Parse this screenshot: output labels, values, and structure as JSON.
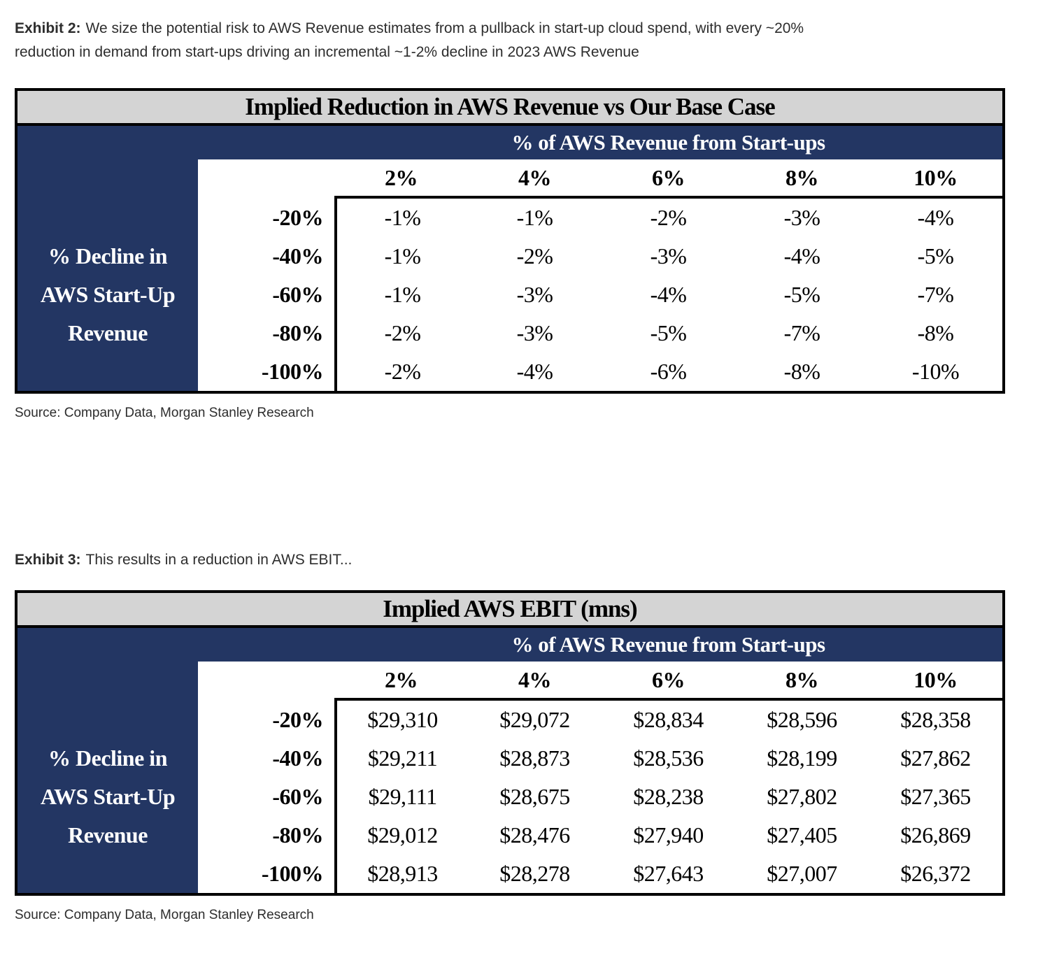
{
  "captions": {
    "exhibit2_label": "Exhibit 2:",
    "exhibit2_lines": [
      "We size the potential risk to AWS Revenue estimates from a pullback in start-up cloud spend, with every ~20%",
      "reduction in demand from start-ups driving an incremental ~1-2% decline in 2023 AWS Revenue"
    ],
    "exhibit3_label": "Exhibit 3:",
    "exhibit3_text": "This results in a reduction in AWS EBIT...",
    "source": "Source: Company Data, Morgan Stanley Research"
  },
  "colors": {
    "navy": "#233663",
    "title_bar_gray": "#D4D4D4",
    "border_black": "#000000",
    "caption_text": "#2D2D2D"
  },
  "chart_data": [
    {
      "type": "table",
      "title": "Implied Reduction in AWS Revenue vs Our Base Case",
      "column_group_label": "% of AWS Revenue from Start-ups",
      "row_group_label_lines": [
        "% Decline in",
        "AWS Start-Up",
        "Revenue"
      ],
      "columns": [
        "2%",
        "4%",
        "6%",
        "8%",
        "10%"
      ],
      "rows": [
        "-20%",
        "-40%",
        "-60%",
        "-80%",
        "-100%"
      ],
      "values": [
        [
          "-1%",
          "-1%",
          "-2%",
          "-3%",
          "-4%"
        ],
        [
          "-1%",
          "-2%",
          "-3%",
          "-4%",
          "-5%"
        ],
        [
          "-1%",
          "-3%",
          "-4%",
          "-5%",
          "-7%"
        ],
        [
          "-2%",
          "-3%",
          "-5%",
          "-7%",
          "-8%"
        ],
        [
          "-2%",
          "-4%",
          "-6%",
          "-8%",
          "-10%"
        ]
      ]
    },
    {
      "type": "table",
      "title": "Implied AWS EBIT (mns)",
      "column_group_label": "% of AWS Revenue from Start-ups",
      "row_group_label_lines": [
        "% Decline in",
        "AWS Start-Up",
        "Revenue"
      ],
      "columns": [
        "2%",
        "4%",
        "6%",
        "8%",
        "10%"
      ],
      "rows": [
        "-20%",
        "-40%",
        "-60%",
        "-80%",
        "-100%"
      ],
      "values": [
        [
          "$29,310",
          "$29,072",
          "$28,834",
          "$28,596",
          "$28,358"
        ],
        [
          "$29,211",
          "$28,873",
          "$28,536",
          "$28,199",
          "$27,862"
        ],
        [
          "$29,111",
          "$28,675",
          "$28,238",
          "$27,802",
          "$27,365"
        ],
        [
          "$29,012",
          "$28,476",
          "$27,940",
          "$27,405",
          "$26,869"
        ],
        [
          "$28,913",
          "$28,278",
          "$27,643",
          "$27,007",
          "$26,372"
        ]
      ]
    }
  ]
}
